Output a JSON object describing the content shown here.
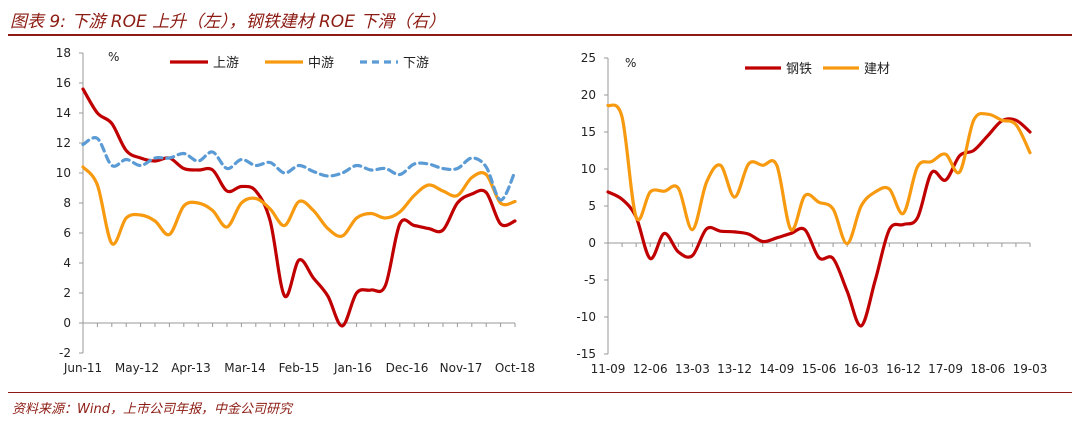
{
  "title": "图表 9: 下游 ROE 上升（左），钢铁建材 ROE 下滑（右）",
  "source": "资料来源：Wind，上市公司年报，中金公司研究",
  "colors": {
    "upstream": "#c00000",
    "midstream": "#f79a10",
    "downstream": "#5b9bd5",
    "steel": "#c00000",
    "building": "#f79a10",
    "accent": "#8c1c13"
  },
  "chart_data": [
    {
      "type": "line",
      "unit": "%",
      "ylim": [
        -2,
        18
      ],
      "yticks": [
        -2,
        0,
        2,
        4,
        6,
        8,
        10,
        12,
        14,
        16,
        18
      ],
      "xtick_labels": [
        "Jun-11",
        "May-12",
        "Apr-13",
        "Mar-14",
        "Feb-15",
        "Jan-16",
        "Dec-16",
        "Nov-17",
        "Oct-18"
      ],
      "legend_position": "top",
      "x": [
        "11Q2",
        "11Q3",
        "11Q4",
        "12Q1",
        "12Q2",
        "12Q3",
        "12Q4",
        "13Q1",
        "13Q2",
        "13Q3",
        "13Q4",
        "14Q1",
        "14Q2",
        "14Q3",
        "14Q4",
        "15Q1",
        "15Q2",
        "15Q3",
        "15Q4",
        "16Q1",
        "16Q2",
        "16Q3",
        "16Q4",
        "17Q1",
        "17Q2",
        "17Q3",
        "17Q4",
        "18Q1",
        "18Q2",
        "18Q3",
        "18Q4"
      ],
      "series": [
        {
          "name": "上游",
          "values": [
            15.6,
            14.0,
            13.3,
            11.5,
            11.0,
            10.8,
            11.0,
            10.3,
            10.2,
            10.2,
            8.8,
            9.1,
            8.8,
            6.8,
            1.8,
            4.2,
            3.0,
            1.8,
            -0.2,
            2.0,
            2.2,
            2.5,
            6.6,
            6.5,
            6.3,
            6.2,
            8.0,
            8.6,
            8.7,
            6.6,
            6.8
          ]
        },
        {
          "name": "中游",
          "values": [
            10.4,
            9.2,
            5.3,
            7.0,
            7.2,
            6.8,
            5.9,
            7.8,
            8.0,
            7.5,
            6.4,
            8.0,
            8.3,
            7.6,
            6.5,
            8.1,
            7.5,
            6.3,
            5.8,
            7.0,
            7.3,
            7.0,
            7.4,
            8.5,
            9.2,
            8.8,
            8.5,
            9.7,
            9.9,
            8.0,
            8.1
          ]
        },
        {
          "name": "下游",
          "values": [
            11.9,
            12.3,
            10.5,
            10.9,
            10.5,
            11.0,
            11.0,
            11.3,
            10.8,
            11.4,
            10.3,
            10.9,
            10.5,
            10.7,
            10.0,
            10.5,
            10.1,
            9.8,
            10.0,
            10.5,
            10.2,
            10.3,
            9.9,
            10.6,
            10.6,
            10.3,
            10.3,
            11.0,
            10.4,
            8.2,
            10.1
          ]
        }
      ]
    },
    {
      "type": "line",
      "unit": "%",
      "ylim": [
        -15,
        25
      ],
      "yticks": [
        -15,
        -10,
        -5,
        0,
        5,
        10,
        15,
        20,
        25
      ],
      "xtick_labels": [
        "11-09",
        "12-06",
        "13-03",
        "13-12",
        "14-09",
        "15-06",
        "16-03",
        "16-12",
        "17-09",
        "18-06",
        "19-03"
      ],
      "legend_position": "top-left",
      "x": [
        "11-09",
        "11-12",
        "12-03",
        "12-06",
        "12-09",
        "12-12",
        "13-03",
        "13-06",
        "13-09",
        "13-12",
        "14-03",
        "14-06",
        "14-09",
        "14-12",
        "15-03",
        "15-06",
        "15-09",
        "15-12",
        "16-03",
        "16-06",
        "16-09",
        "16-12",
        "17-03",
        "17-06",
        "17-09",
        "17-12",
        "18-03",
        "18-06",
        "18-09",
        "18-12",
        "19-03"
      ],
      "series": [
        {
          "name": "钢铁",
          "values": [
            6.9,
            5.9,
            3.5,
            -2.1,
            1.3,
            -1.2,
            -1.7,
            1.9,
            1.6,
            1.5,
            1.2,
            0.2,
            0.7,
            1.3,
            1.8,
            -2.0,
            -2.1,
            -6.5,
            -11.2,
            -5.0,
            1.8,
            2.5,
            3.4,
            9.5,
            8.5,
            11.8,
            12.5,
            14.5,
            16.5,
            16.6,
            15.0
          ]
        },
        {
          "name": "建材",
          "values": [
            18.6,
            17.0,
            3.5,
            6.9,
            7.0,
            7.4,
            1.8,
            8.2,
            10.5,
            6.2,
            10.7,
            10.5,
            10.5,
            1.8,
            6.4,
            5.5,
            4.6,
            -0.1,
            5.0,
            6.9,
            7.3,
            4.0,
            10.3,
            11.0,
            12.0,
            9.6,
            16.6,
            17.4,
            16.6,
            16.0,
            12.2
          ]
        }
      ]
    }
  ]
}
